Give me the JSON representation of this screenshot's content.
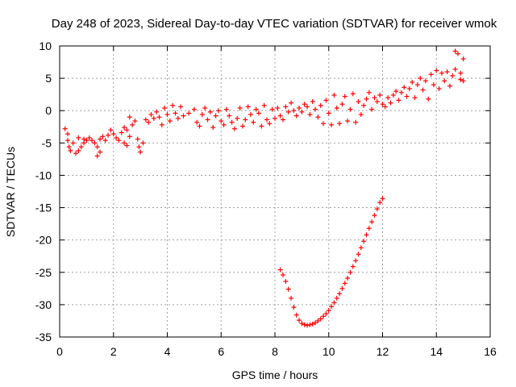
{
  "chart_data": {
    "type": "scatter",
    "title": "Day 248 of 2023, Sidereal Day-to-day VTEC variation (SDTVAR) for receiver wmok",
    "xlabel": "GPS time / hours",
    "ylabel": "SDTVAR / TECUs",
    "xlim": [
      0,
      16
    ],
    "ylim": [
      -35,
      10
    ],
    "xticks": [
      0,
      2,
      4,
      6,
      8,
      10,
      12,
      14,
      16
    ],
    "yticks": [
      10,
      5,
      0,
      -5,
      -10,
      -15,
      -20,
      -25,
      -30,
      -35
    ],
    "grid": true,
    "legend": "none",
    "marker": "plus",
    "color": "#ff0000",
    "series": [
      {
        "points": [
          [
            0.2,
            -2.8
          ],
          [
            0.3,
            -3.6
          ],
          [
            0.3,
            -4.6
          ],
          [
            0.35,
            -5.6
          ],
          [
            0.4,
            -6.2
          ],
          [
            0.5,
            -5.0
          ],
          [
            0.6,
            -6.6
          ],
          [
            0.7,
            -6.2
          ],
          [
            0.8,
            -5.6
          ],
          [
            0.9,
            -5.0
          ],
          [
            0.7,
            -4.2
          ],
          [
            0.9,
            -4.4
          ],
          [
            1.0,
            -4.6
          ],
          [
            1.1,
            -4.2
          ],
          [
            1.2,
            -4.6
          ],
          [
            1.3,
            -5.0
          ],
          [
            1.4,
            -5.6
          ],
          [
            1.4,
            -7.0
          ],
          [
            1.5,
            -6.4
          ],
          [
            1.5,
            -4.4
          ],
          [
            1.6,
            -4.0
          ],
          [
            1.7,
            -4.6
          ],
          [
            1.8,
            -3.8
          ],
          [
            1.9,
            -3.0
          ],
          [
            2.0,
            -3.6
          ],
          [
            2.1,
            -4.2
          ],
          [
            2.2,
            -4.6
          ],
          [
            2.3,
            -3.4
          ],
          [
            2.4,
            -2.6
          ],
          [
            2.5,
            -3.0
          ],
          [
            2.4,
            -5.0
          ],
          [
            2.5,
            -5.4
          ],
          [
            2.6,
            -4.0
          ],
          [
            2.7,
            -2.2
          ],
          [
            2.8,
            -1.6
          ],
          [
            2.6,
            -1.0
          ],
          [
            2.9,
            -4.4
          ],
          [
            2.95,
            -5.6
          ],
          [
            3.0,
            -6.4
          ],
          [
            3.1,
            -5.0
          ],
          [
            3.2,
            -1.4
          ],
          [
            3.3,
            -1.8
          ],
          [
            3.4,
            -0.6
          ],
          [
            3.5,
            -1.2
          ],
          [
            3.6,
            -0.2
          ],
          [
            3.7,
            -1.0
          ],
          [
            3.8,
            -2.2
          ],
          [
            3.9,
            0.4
          ],
          [
            4.0,
            -0.6
          ],
          [
            4.1,
            -1.6
          ],
          [
            4.2,
            0.8
          ],
          [
            4.3,
            -0.4
          ],
          [
            4.4,
            -1.2
          ],
          [
            4.5,
            0.6
          ],
          [
            4.6,
            -0.8
          ],
          [
            4.8,
            -0.4
          ],
          [
            5.0,
            0.2
          ],
          [
            5.1,
            -1.8
          ],
          [
            5.2,
            -2.4
          ],
          [
            5.3,
            -0.6
          ],
          [
            5.4,
            0.4
          ],
          [
            5.5,
            -1.4
          ],
          [
            5.6,
            -0.2
          ],
          [
            5.7,
            -2.6
          ],
          [
            5.8,
            -0.8
          ],
          [
            5.9,
            0.0
          ],
          [
            6.0,
            -1.6
          ],
          [
            6.1,
            -2.2
          ],
          [
            6.2,
            0.2
          ],
          [
            6.3,
            -0.8
          ],
          [
            6.4,
            -1.8
          ],
          [
            6.5,
            -2.8
          ],
          [
            6.6,
            -1.2
          ],
          [
            6.7,
            0.4
          ],
          [
            6.8,
            -2.4
          ],
          [
            6.9,
            -1.4
          ],
          [
            7.0,
            0.6
          ],
          [
            7.1,
            -0.6
          ],
          [
            7.2,
            -1.8
          ],
          [
            7.3,
            0.2
          ],
          [
            7.4,
            -0.4
          ],
          [
            7.5,
            -2.4
          ],
          [
            7.6,
            0.8
          ],
          [
            7.7,
            -1.4
          ],
          [
            7.8,
            -2.0
          ],
          [
            7.9,
            0.2
          ],
          [
            8.0,
            -1.2
          ],
          [
            8.1,
            0.4
          ],
          [
            8.2,
            -0.8
          ],
          [
            8.3,
            -1.4
          ],
          [
            8.4,
            0.6
          ],
          [
            8.5,
            -0.2
          ],
          [
            8.6,
            1.2
          ],
          [
            8.7,
            0.0
          ],
          [
            8.8,
            -0.8
          ],
          [
            8.9,
            0.4
          ],
          [
            9.0,
            -0.2
          ],
          [
            9.1,
            1.0
          ],
          [
            9.2,
            0.6
          ],
          [
            9.3,
            -0.6
          ],
          [
            9.4,
            1.4
          ],
          [
            9.5,
            0.2
          ],
          [
            9.6,
            -1.0
          ],
          [
            9.7,
            0.8
          ],
          [
            9.8,
            -2.0
          ],
          [
            9.9,
            1.6
          ],
          [
            10.0,
            -0.4
          ],
          [
            10.1,
            -2.2
          ],
          [
            10.2,
            2.4
          ],
          [
            10.3,
            0.4
          ],
          [
            10.4,
            -2.0
          ],
          [
            10.5,
            1.0
          ],
          [
            10.6,
            2.2
          ],
          [
            10.7,
            -1.6
          ],
          [
            10.8,
            0.2
          ],
          [
            10.9,
            2.6
          ],
          [
            11.0,
            -1.8
          ],
          [
            11.1,
            1.4
          ],
          [
            11.2,
            -0.6
          ],
          [
            11.3,
            0.8
          ],
          [
            11.4,
            1.8
          ],
          [
            11.5,
            2.8
          ],
          [
            11.6,
            0.2
          ],
          [
            11.7,
            2.0
          ],
          [
            11.8,
            1.4
          ],
          [
            11.9,
            2.4
          ],
          [
            12.0,
            1.0
          ],
          [
            12.1,
            0.6
          ],
          [
            12.2,
            2.0
          ],
          [
            12.3,
            1.2
          ],
          [
            12.4,
            2.4
          ],
          [
            12.5,
            3.0
          ],
          [
            12.6,
            1.6
          ],
          [
            12.7,
            2.8
          ],
          [
            12.8,
            3.6
          ],
          [
            12.9,
            2.2
          ],
          [
            13.0,
            3.4
          ],
          [
            13.1,
            4.4
          ],
          [
            13.2,
            2.0
          ],
          [
            13.3,
            4.0
          ],
          [
            13.4,
            5.0
          ],
          [
            13.5,
            3.2
          ],
          [
            13.6,
            4.6
          ],
          [
            13.7,
            1.8
          ],
          [
            13.8,
            5.6
          ],
          [
            13.9,
            4.0
          ],
          [
            14.0,
            6.2
          ],
          [
            14.1,
            3.4
          ],
          [
            14.2,
            5.8
          ],
          [
            14.3,
            4.6
          ],
          [
            14.4,
            6.0
          ],
          [
            14.5,
            3.8
          ],
          [
            14.6,
            5.4
          ],
          [
            14.7,
            6.4
          ],
          [
            14.7,
            9.2
          ],
          [
            14.8,
            8.8
          ],
          [
            14.9,
            4.8
          ],
          [
            14.9,
            5.8
          ],
          [
            15.0,
            8.0
          ],
          [
            15.0,
            4.6
          ],
          [
            8.2,
            -24.6
          ],
          [
            8.3,
            -25.4
          ],
          [
            8.4,
            -26.4
          ],
          [
            8.5,
            -27.6
          ],
          [
            8.6,
            -29.0
          ],
          [
            8.7,
            -30.4
          ],
          [
            8.8,
            -31.6
          ],
          [
            8.9,
            -32.4
          ],
          [
            9.0,
            -32.9
          ],
          [
            9.1,
            -33.1
          ],
          [
            9.2,
            -33.2
          ],
          [
            9.3,
            -33.1
          ],
          [
            9.4,
            -33.0
          ],
          [
            9.5,
            -32.8
          ],
          [
            9.6,
            -32.5
          ],
          [
            9.7,
            -32.2
          ],
          [
            9.8,
            -31.8
          ],
          [
            9.9,
            -31.4
          ],
          [
            10.0,
            -30.9
          ],
          [
            10.1,
            -30.3
          ],
          [
            10.2,
            -29.7
          ],
          [
            10.3,
            -29.0
          ],
          [
            10.4,
            -28.3
          ],
          [
            10.5,
            -27.5
          ],
          [
            10.6,
            -26.7
          ],
          [
            10.7,
            -25.9
          ],
          [
            10.8,
            -25.0
          ],
          [
            10.9,
            -24.1
          ],
          [
            11.0,
            -23.2
          ],
          [
            11.1,
            -22.2
          ],
          [
            11.2,
            -21.2
          ],
          [
            11.3,
            -20.2
          ],
          [
            11.4,
            -19.2
          ],
          [
            11.5,
            -18.2
          ],
          [
            11.6,
            -17.2
          ],
          [
            11.7,
            -16.2
          ],
          [
            11.8,
            -15.2
          ],
          [
            11.9,
            -14.2
          ],
          [
            12.0,
            -13.6
          ]
        ]
      }
    ]
  }
}
